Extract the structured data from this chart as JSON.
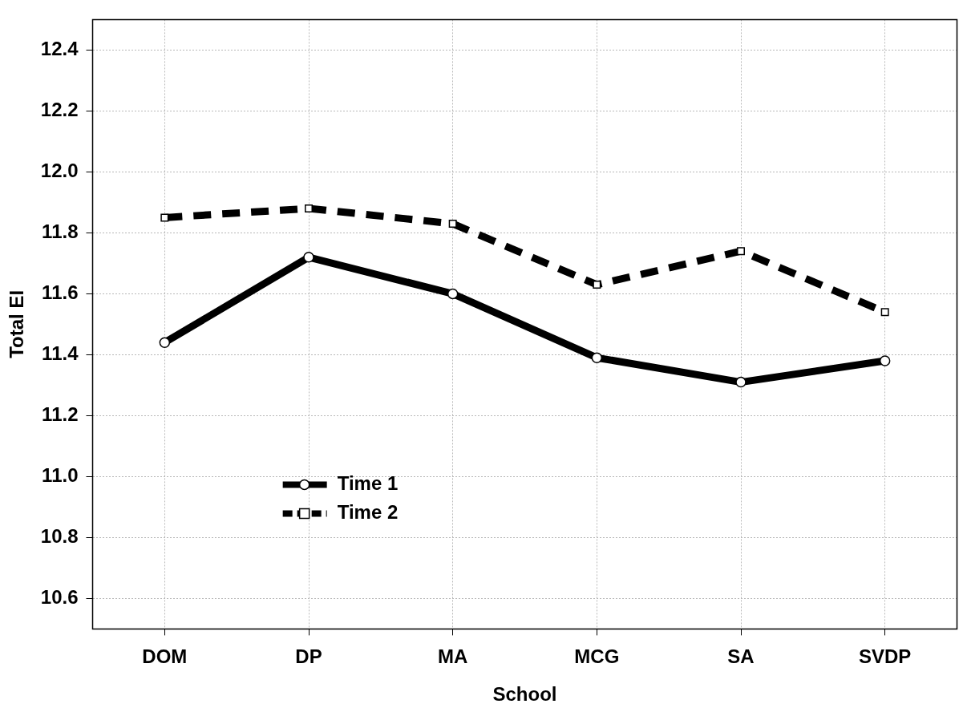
{
  "chart_data": {
    "type": "line",
    "xlabel": "School",
    "ylabel": "Total EI",
    "categories": [
      "DOM",
      "DP",
      "MA",
      "MCG",
      "SA",
      "SVDP"
    ],
    "series": [
      {
        "name": "Time 1",
        "color": "#000000",
        "marker": "circle",
        "line_style": "solid",
        "values": [
          11.44,
          11.72,
          11.6,
          11.39,
          11.31,
          11.38
        ]
      },
      {
        "name": "Time 2",
        "color": "#000000",
        "marker": "square",
        "line_style": "dashed",
        "values": [
          11.85,
          11.88,
          11.83,
          11.63,
          11.74,
          11.54
        ]
      }
    ],
    "ylim": [
      10.5,
      12.5
    ],
    "yticks": [
      10.6,
      10.8,
      {
        "value": 11,
        "label": "11.0"
      },
      11.2,
      11.4,
      11.6,
      11.8,
      {
        "value": 12,
        "label": "12.0"
      },
      12.2,
      12.4
    ],
    "grid": true,
    "legend": "bottom left"
  }
}
